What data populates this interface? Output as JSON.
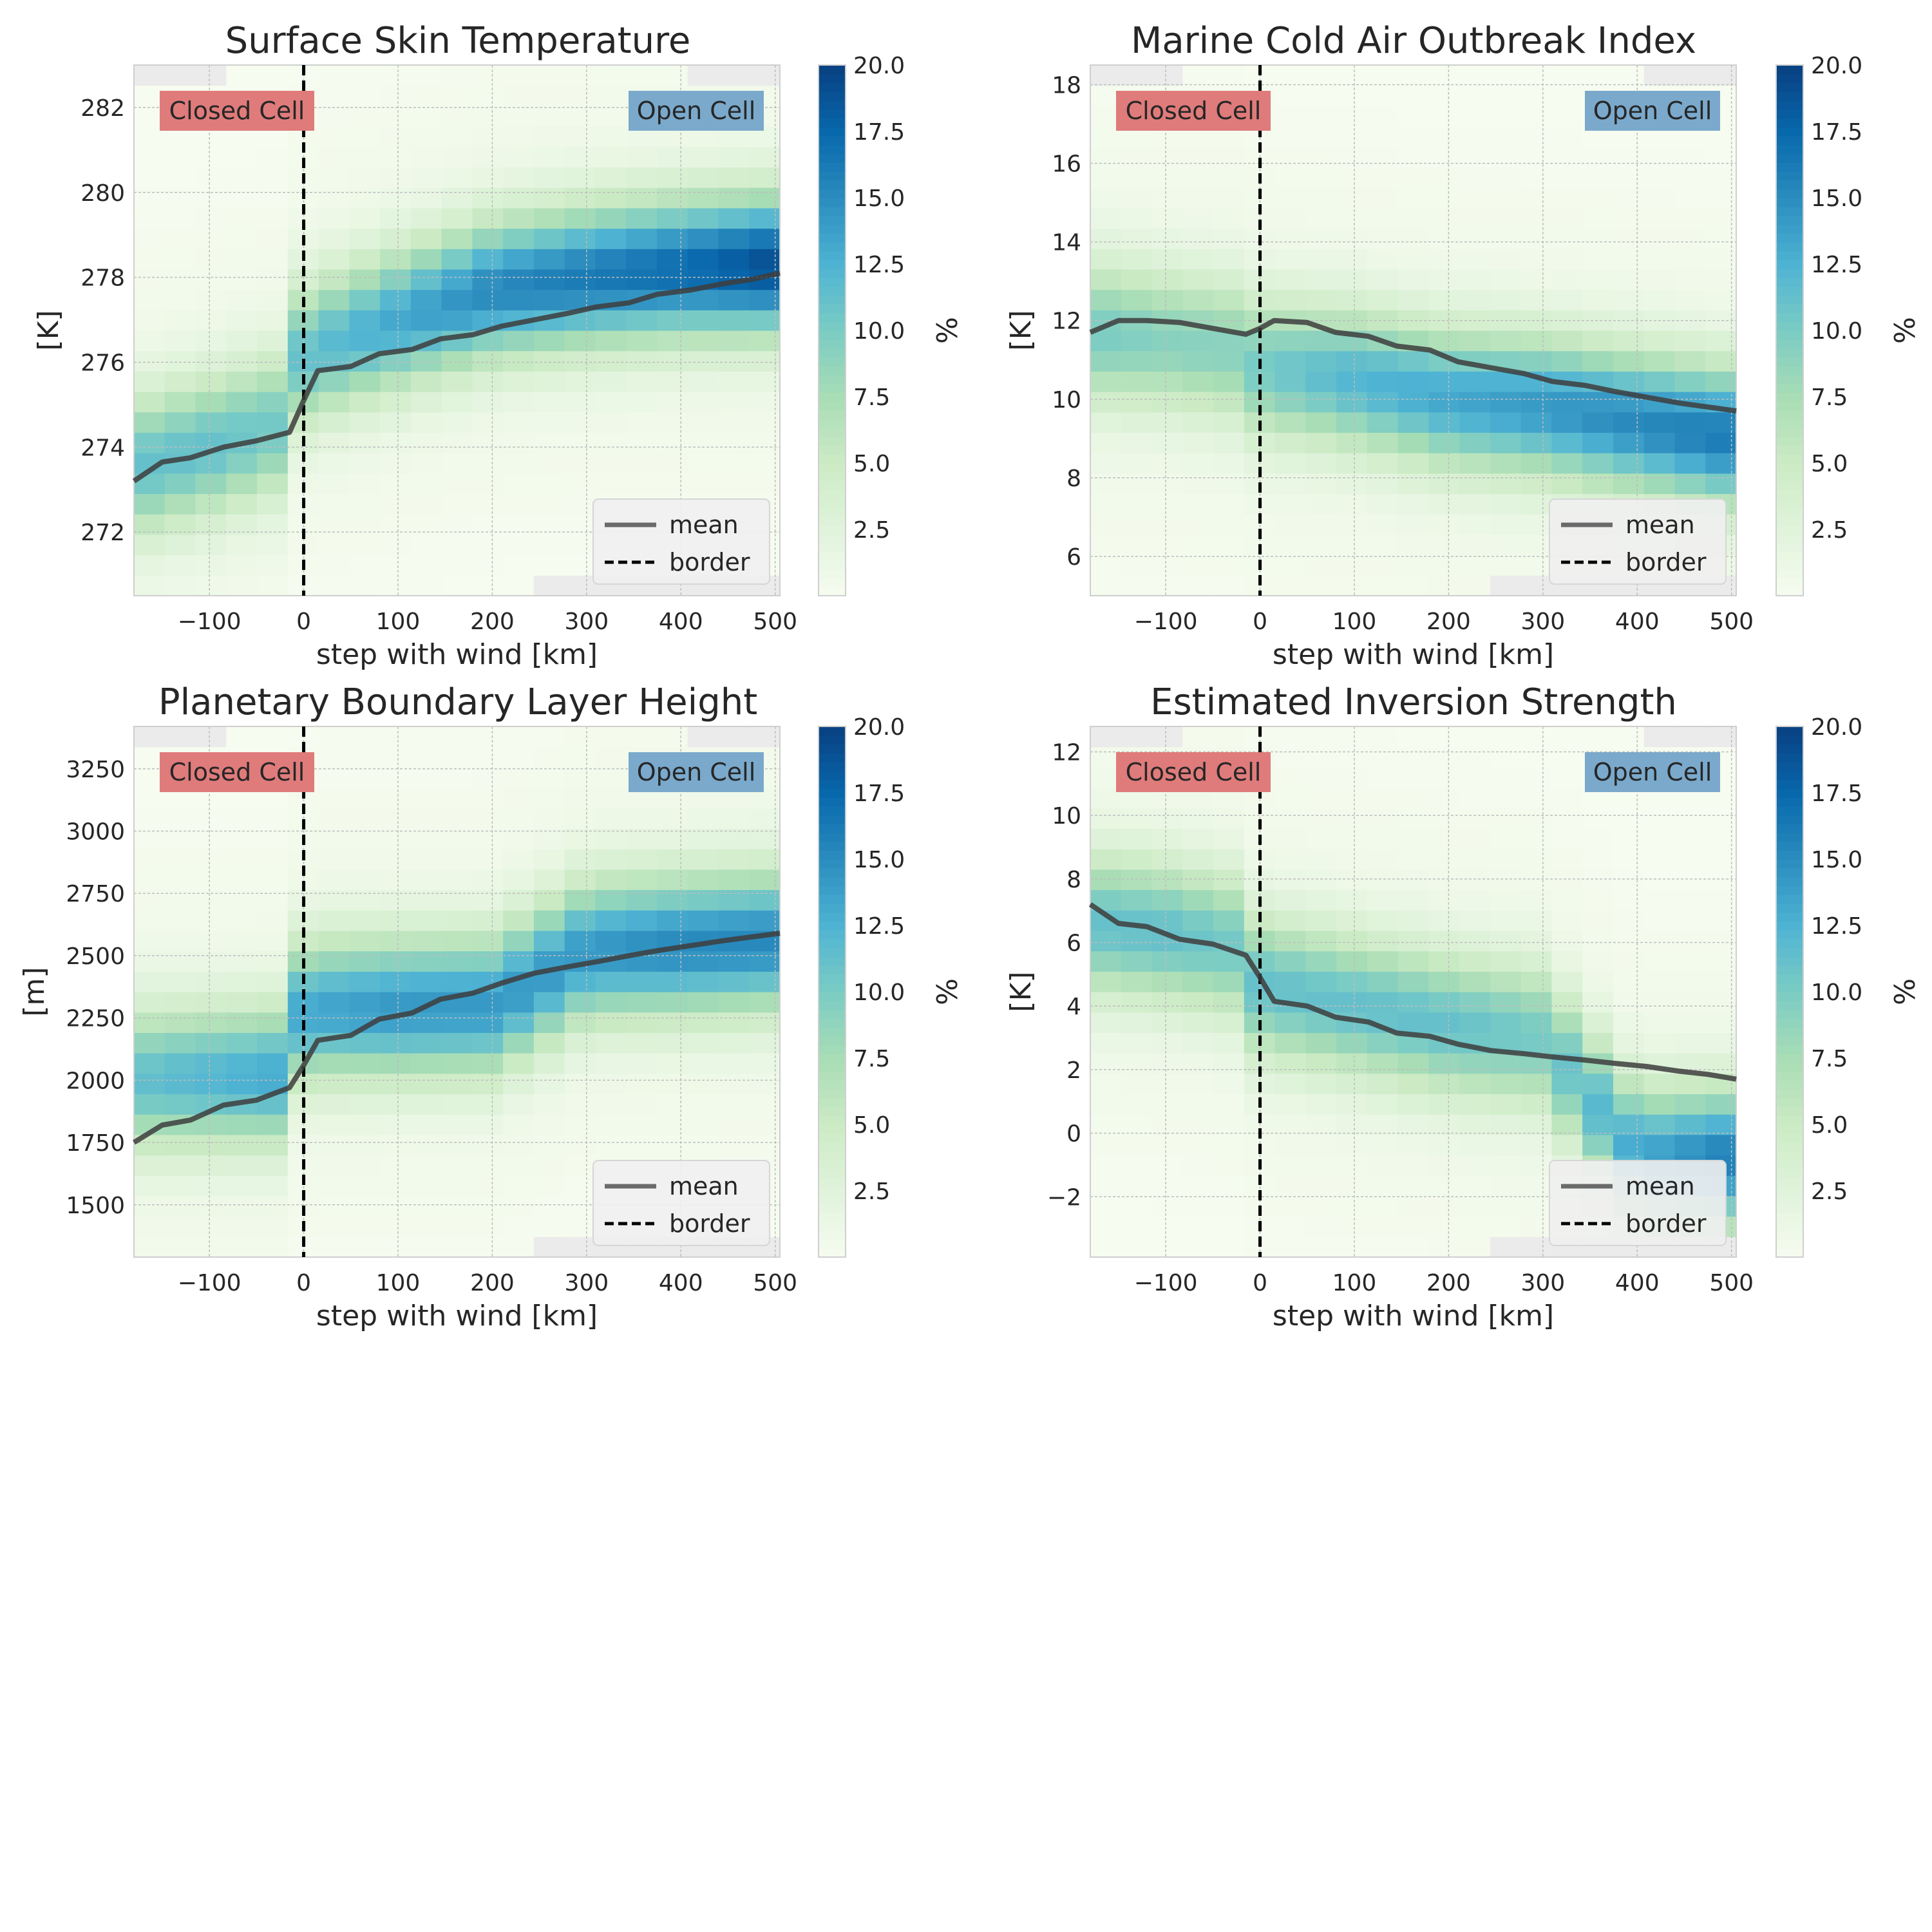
{
  "figure": {
    "annotations": {
      "closed": "Closed Cell",
      "open": "Open Cell"
    },
    "colors": {
      "mean_line": "#3d3d3d",
      "border_line": "#000000",
      "closed_box": "#e07b7b",
      "open_box": "#7aa9cc",
      "missing_bin": "#ebebeb",
      "grid": "#bdbdbd"
    },
    "colormap": [
      "#f7fcf0",
      "#e0f3db",
      "#ccebc5",
      "#a8ddb5",
      "#7bccc4",
      "#4eb3d3",
      "#2b8cbe",
      "#0868ac",
      "#084081"
    ],
    "legend": {
      "mean": "mean",
      "border": "border",
      "placement": "lower right"
    },
    "colorbar": {
      "label": "%",
      "min": 0,
      "max": 20,
      "ticks": [
        "2.5",
        "5.0",
        "7.5",
        "10.0",
        "12.5",
        "15.0",
        "17.5",
        "20.0"
      ]
    },
    "xlabel": "step with wind [km]",
    "xticks": [
      "−100",
      "0",
      "100",
      "200",
      "300",
      "400",
      "500"
    ]
  },
  "chart_data": [
    {
      "type": "heatmap",
      "title": "Surface Skin Temperature",
      "xlabel": "step with wind [km]",
      "ylabel": "[K]",
      "xlim": [
        -180,
        505
      ],
      "ylim": [
        270.5,
        283
      ],
      "yticks": [
        "272",
        "274",
        "276",
        "278",
        "280",
        "282"
      ],
      "grid": true,
      "border_x": 0,
      "colorbar_label": "%",
      "mean": {
        "x": [
          -180,
          -150,
          -120,
          -85,
          -50,
          -15,
          0,
          15,
          50,
          80,
          115,
          145,
          180,
          210,
          245,
          280,
          310,
          345,
          375,
          410,
          445,
          475,
          505
        ],
        "y": [
          273.2,
          273.65,
          273.75,
          274.0,
          274.15,
          274.35,
          275.1,
          275.8,
          275.9,
          276.2,
          276.3,
          276.55,
          276.65,
          276.85,
          277.0,
          277.15,
          277.3,
          277.4,
          277.6,
          277.7,
          277.85,
          277.95,
          278.1
        ]
      },
      "density_ridge": {
        "x": [
          -180,
          -100,
          -15,
          0,
          100,
          200,
          300,
          400,
          505
        ],
        "y": [
          273.5,
          274.0,
          274.6,
          276.2,
          277.0,
          277.7,
          278.0,
          278.2,
          278.3
        ],
        "peak_percent": [
          10,
          10,
          9,
          10,
          12,
          14,
          15,
          16,
          18
        ]
      }
    },
    {
      "type": "heatmap",
      "title": "Marine Cold Air Outbreak Index",
      "xlabel": "step with wind [km]",
      "ylabel": "[K]",
      "xlim": [
        -180,
        505
      ],
      "ylim": [
        5,
        18.5
      ],
      "yticks": [
        "6",
        "8",
        "10",
        "12",
        "14",
        "16",
        "18"
      ],
      "grid": true,
      "border_x": 0,
      "colorbar_label": "%",
      "mean": {
        "x": [
          -180,
          -150,
          -120,
          -85,
          -50,
          -15,
          0,
          15,
          50,
          80,
          115,
          145,
          180,
          210,
          245,
          280,
          310,
          345,
          375,
          410,
          445,
          475,
          505
        ],
        "y": [
          11.7,
          12.0,
          12.0,
          11.95,
          11.8,
          11.65,
          11.8,
          12.0,
          11.95,
          11.7,
          11.6,
          11.35,
          11.25,
          10.95,
          10.8,
          10.65,
          10.45,
          10.35,
          10.2,
          10.05,
          9.9,
          9.8,
          9.7
        ]
      },
      "density_ridge": {
        "x": [
          -180,
          -100,
          -15,
          0,
          100,
          200,
          300,
          400,
          505
        ],
        "y": [
          11.7,
          11.5,
          11.2,
          10.8,
          10.5,
          10.0,
          9.8,
          9.4,
          9.0
        ],
        "peak_percent": [
          9,
          8,
          8,
          9,
          11,
          12,
          13,
          14,
          15
        ]
      }
    },
    {
      "type": "heatmap",
      "title": "Planetary Boundary Layer Height",
      "xlabel": "step with wind [km]",
      "ylabel": "[m]",
      "xlim": [
        -180,
        505
      ],
      "ylim": [
        1290,
        3420
      ],
      "yticks": [
        "1500",
        "1750",
        "2000",
        "2250",
        "2500",
        "2750",
        "3000",
        "3250"
      ],
      "grid": true,
      "border_x": 0,
      "colorbar_label": "%",
      "mean": {
        "x": [
          -180,
          -150,
          -120,
          -85,
          -50,
          -15,
          0,
          15,
          50,
          80,
          115,
          145,
          180,
          210,
          245,
          280,
          310,
          345,
          375,
          410,
          445,
          475,
          505
        ],
        "y": [
          1750,
          1820,
          1840,
          1900,
          1920,
          1970,
          2060,
          2160,
          2180,
          2245,
          2270,
          2325,
          2350,
          2390,
          2430,
          2455,
          2475,
          2500,
          2520,
          2540,
          2560,
          2575,
          2590
        ]
      },
      "density_ridge": {
        "x": [
          -180,
          -100,
          -15,
          0,
          100,
          200,
          300,
          400,
          505
        ],
        "y": [
          2000,
          2010,
          2020,
          2280,
          2290,
          2300,
          2520,
          2540,
          2560
        ],
        "peak_percent": [
          10,
          11,
          12,
          12,
          13,
          13,
          13,
          14,
          14
        ]
      }
    },
    {
      "type": "heatmap",
      "title": "Estimated Inversion Strength",
      "xlabel": "step with wind [km]",
      "ylabel": "[K]",
      "xlim": [
        -180,
        505
      ],
      "ylim": [
        -3.9,
        12.8
      ],
      "yticks": [
        "−2",
        "0",
        "2",
        "4",
        "6",
        "8",
        "10",
        "12"
      ],
      "grid": true,
      "border_x": 0,
      "colorbar_label": "%",
      "mean": {
        "x": [
          -180,
          -150,
          -120,
          -85,
          -50,
          -15,
          0,
          15,
          50,
          80,
          115,
          145,
          180,
          210,
          245,
          280,
          310,
          345,
          375,
          410,
          445,
          475,
          505
        ],
        "y": [
          7.2,
          6.6,
          6.5,
          6.1,
          5.95,
          5.6,
          4.9,
          4.15,
          4.0,
          3.65,
          3.5,
          3.15,
          3.05,
          2.8,
          2.6,
          2.5,
          2.4,
          2.3,
          2.2,
          2.1,
          1.95,
          1.85,
          1.7
        ]
      },
      "density_ridge": {
        "x": [
          -180,
          -100,
          -15,
          0,
          100,
          200,
          300,
          400,
          505
        ],
        "y": [
          6.6,
          6.3,
          5.8,
          4.6,
          4.0,
          3.4,
          3.0,
          -0.8,
          -0.8
        ],
        "peak_percent": [
          10,
          10,
          9,
          10,
          10,
          10,
          9,
          12,
          15
        ]
      }
    }
  ]
}
